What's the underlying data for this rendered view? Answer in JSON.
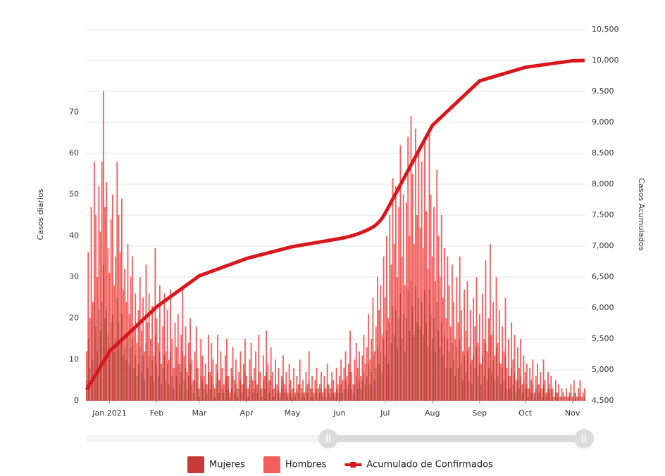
{
  "chart_data": {
    "type": "bar",
    "stacked": true,
    "ylabel": "Casos diarios",
    "y2label": "Casos Acumulados",
    "ylim": [
      0,
      90
    ],
    "yticks": [
      0,
      10,
      20,
      30,
      40,
      50,
      60,
      70
    ],
    "y2lim": [
      4500,
      10500
    ],
    "y2ticks": [
      {
        "value": 4500,
        "label": "4,500"
      },
      {
        "value": 5000,
        "label": "5,000"
      },
      {
        "value": 5500,
        "label": "5,500"
      },
      {
        "value": 6000,
        "label": "6,000"
      },
      {
        "value": 6500,
        "label": "6,500"
      },
      {
        "value": 7000,
        "label": "7,000"
      },
      {
        "value": 7500,
        "label": "7,500"
      },
      {
        "value": 8000,
        "label": "8,000"
      },
      {
        "value": 8500,
        "label": "8,500"
      },
      {
        "value": 9000,
        "label": "9,000"
      },
      {
        "value": 9500,
        "label": "9,500"
      },
      {
        "value": 10000,
        "label": "10,000"
      },
      {
        "value": 10500,
        "label": "10,500"
      }
    ],
    "grid": true,
    "legend": "bottom",
    "categories": [
      null,
      null,
      null,
      null,
      null,
      null,
      null,
      null,
      null,
      null,
      null,
      null,
      null,
      null,
      null,
      "Jan 2021",
      null,
      null,
      null,
      null,
      null,
      null,
      null,
      null,
      null,
      null,
      null,
      null,
      null,
      null,
      null,
      null,
      null,
      null,
      null,
      null,
      null,
      null,
      null,
      null,
      null,
      null,
      null,
      null,
      null,
      null,
      "Feb",
      null,
      null,
      null,
      null,
      null,
      null,
      null,
      null,
      null,
      null,
      null,
      null,
      null,
      null,
      null,
      null,
      null,
      null,
      null,
      null,
      null,
      null,
      null,
      null,
      null,
      null,
      null,
      "Mar",
      null,
      null,
      null,
      null,
      null,
      null,
      null,
      null,
      null,
      null,
      null,
      null,
      null,
      null,
      null,
      null,
      null,
      null,
      null,
      null,
      null,
      null,
      null,
      null,
      null,
      null,
      null,
      null,
      null,
      null,
      "Apr",
      null,
      null,
      null,
      null,
      null,
      null,
      null,
      null,
      null,
      null,
      null,
      null,
      null,
      null,
      null,
      null,
      null,
      null,
      null,
      null,
      null,
      null,
      null,
      null,
      null,
      null,
      null,
      null,
      null,
      "May",
      null,
      null,
      null,
      null,
      null,
      null,
      null,
      null,
      null,
      null,
      null,
      null,
      null,
      null,
      null,
      null,
      null,
      null,
      null,
      null,
      null,
      null,
      null,
      null,
      null,
      null,
      null,
      null,
      null,
      null,
      "Jun",
      null,
      null,
      null,
      null,
      null,
      null,
      null,
      null,
      null,
      null,
      null,
      null,
      null,
      null,
      null,
      null,
      null,
      null,
      null,
      null,
      null,
      null,
      null,
      null,
      null,
      null,
      null,
      null,
      null,
      "Jul",
      null,
      null,
      null,
      null,
      null,
      null,
      null,
      null,
      null,
      null,
      null,
      null,
      null,
      null,
      null,
      null,
      null,
      null,
      null,
      null,
      null,
      null,
      null,
      null,
      null,
      null,
      null,
      null,
      null,
      null,
      "Aug",
      null,
      null,
      null,
      null,
      null,
      null,
      null,
      null,
      null,
      null,
      null,
      null,
      null,
      null,
      null,
      null,
      null,
      null,
      null,
      null,
      null,
      null,
      null,
      null,
      null,
      null,
      null,
      null,
      null,
      null,
      "Sep",
      null,
      null,
      null,
      null,
      null,
      null,
      null,
      null,
      null,
      null,
      null,
      null,
      null,
      null,
      null,
      null,
      null,
      null,
      null,
      null,
      null,
      null,
      null,
      null,
      null,
      null,
      null,
      null,
      null,
      "Oct",
      null,
      null,
      null,
      null,
      null,
      null,
      null,
      null,
      null,
      null,
      null,
      null,
      null,
      null,
      null,
      null,
      null,
      null,
      null,
      null,
      null,
      null,
      null,
      null,
      null,
      null,
      null,
      null,
      null,
      null,
      "Nov",
      null,
      null,
      null,
      null,
      null,
      null,
      null,
      null
    ],
    "series": [
      {
        "name": "Mujeres",
        "color": "#c43c35",
        "values": [
          5,
          15,
          8,
          20,
          10,
          24,
          18,
          12,
          22,
          17,
          24,
          33,
          20,
          22,
          16,
          13,
          19,
          21,
          12,
          15,
          25,
          19,
          15,
          21,
          11,
          13,
          10,
          16,
          9,
          13,
          15,
          8,
          11,
          6,
          9,
          13,
          7,
          11,
          5,
          14,
          8,
          11,
          6,
          10,
          5,
          16,
          9,
          6,
          12,
          4,
          8,
          11,
          5,
          9,
          4,
          12,
          6,
          3,
          8,
          6,
          9,
          4,
          7,
          12,
          5,
          8,
          3,
          6,
          9,
          4,
          2,
          5,
          8,
          3,
          1,
          6,
          5,
          3,
          4,
          2,
          7,
          3,
          6,
          4,
          1,
          4,
          7,
          2,
          5,
          3,
          2,
          5,
          6,
          3,
          1,
          3,
          6,
          2,
          4,
          1,
          3,
          5,
          2,
          4,
          7,
          3,
          1,
          4,
          6,
          2,
          3,
          5,
          2,
          7,
          3,
          1,
          5,
          3,
          7,
          4,
          2,
          6,
          3,
          1,
          4,
          2,
          3,
          1,
          3,
          5,
          2,
          3,
          1,
          4,
          2,
          1,
          3,
          1,
          3,
          2,
          4,
          1,
          2,
          1,
          3,
          2,
          5,
          1,
          3,
          1,
          2,
          3,
          1,
          2,
          3,
          1,
          3,
          1,
          4,
          2,
          1,
          3,
          2,
          1,
          3,
          2,
          3,
          4,
          2,
          3,
          5,
          3,
          4,
          7,
          3,
          2,
          4,
          6,
          3,
          5,
          3,
          5,
          7,
          4,
          6,
          9,
          4,
          7,
          11,
          5,
          8,
          13,
          9,
          12,
          7,
          15,
          11,
          17,
          9,
          19,
          14,
          23,
          16,
          22,
          13,
          20,
          26,
          15,
          21,
          12,
          20,
          27,
          17,
          29,
          23,
          16,
          28,
          19,
          25,
          18,
          24,
          16,
          27,
          19,
          13,
          27,
          21,
          15,
          20,
          12,
          24,
          17,
          13,
          19,
          11,
          16,
          8,
          15,
          12,
          8,
          14,
          10,
          6,
          13,
          8,
          15,
          9,
          5,
          11,
          7,
          12,
          5,
          9,
          4,
          11,
          8,
          13,
          6,
          9,
          4,
          11,
          6,
          14,
          5,
          8,
          16,
          7,
          10,
          5,
          13,
          6,
          9,
          4,
          8,
          5,
          11,
          3,
          6,
          3,
          8,
          4,
          7,
          2,
          5,
          3,
          6,
          2,
          5,
          3,
          4,
          1,
          3,
          2,
          4,
          1,
          3,
          4,
          2,
          3,
          1,
          4,
          2,
          1,
          3,
          2,
          3,
          1,
          0,
          2,
          1,
          2,
          0,
          1,
          1,
          0,
          1,
          0,
          1,
          2,
          0,
          2,
          1,
          0,
          1,
          2,
          0,
          1,
          1
        ]
      },
      {
        "name": "Hombres",
        "color": "#f25d5a",
        "values": [
          7,
          21,
          12,
          27,
          14,
          34,
          27,
          18,
          30,
          24,
          34,
          42,
          27,
          31,
          21,
          18,
          25,
          29,
          16,
          20,
          33,
          26,
          21,
          28,
          16,
          19,
          14,
          22,
          12,
          17,
          20,
          10,
          15,
          8,
          13,
          17,
          10,
          14,
          7,
          19,
          11,
          15,
          9,
          13,
          6,
          21,
          11,
          8,
          16,
          5,
          10,
          15,
          7,
          13,
          6,
          15,
          9,
          5,
          11,
          7,
          12,
          5,
          9,
          16,
          6,
          10,
          4,
          8,
          11,
          6,
          3,
          7,
          10,
          5,
          2,
          9,
          6,
          3,
          5,
          2,
          9,
          4,
          8,
          6,
          2,
          5,
          9,
          3,
          7,
          5,
          2,
          6,
          9,
          3,
          1,
          5,
          7,
          3,
          6,
          2,
          4,
          7,
          2,
          5,
          8,
          3,
          2,
          6,
          8,
          3,
          5,
          7,
          2,
          9,
          4,
          2,
          6,
          3,
          10,
          5,
          3,
          7,
          4,
          2,
          6,
          2,
          5,
          1,
          3,
          6,
          2,
          4,
          1,
          5,
          3,
          2,
          5,
          1,
          3,
          2,
          6,
          2,
          3,
          1,
          4,
          2,
          7,
          2,
          3,
          1,
          3,
          5,
          2,
          2,
          4,
          1,
          3,
          2,
          5,
          2,
          2,
          4,
          3,
          1,
          5,
          2,
          3,
          6,
          3,
          5,
          7,
          3,
          5,
          10,
          4,
          2,
          6,
          8,
          5,
          7,
          3,
          6,
          9,
          5,
          7,
          12,
          6,
          8,
          14,
          7,
          10,
          17,
          13,
          16,
          9,
          20,
          14,
          23,
          11,
          26,
          19,
          31,
          22,
          30,
          17,
          27,
          36,
          20,
          29,
          16,
          28,
          37,
          23,
          40,
          32,
          22,
          38,
          26,
          35,
          24,
          34,
          21,
          36,
          27,
          19,
          38,
          29,
          20,
          27,
          17,
          32,
          23,
          17,
          26,
          14,
          21,
          12,
          20,
          16,
          10,
          19,
          14,
          9,
          17,
          11,
          20,
          13,
          7,
          16,
          10,
          17,
          8,
          13,
          6,
          14,
          10,
          17,
          8,
          12,
          5,
          15,
          9,
          20,
          7,
          12,
          22,
          9,
          14,
          6,
          17,
          8,
          13,
          5,
          10,
          7,
          14,
          5,
          9,
          3,
          11,
          6,
          9,
          3,
          8,
          5,
          9,
          2,
          6,
          4,
          5,
          2,
          5,
          3,
          6,
          1,
          3,
          5,
          2,
          4,
          2,
          6,
          3,
          1,
          4,
          2,
          3,
          2,
          1,
          3,
          1,
          2,
          1,
          2,
          1,
          1,
          2,
          1,
          1,
          2,
          1,
          3,
          1,
          1,
          2,
          3,
          1,
          1,
          2
        ]
      },
      {
        "name": "Acumulado de Confirmados",
        "color": "#d7191f",
        "type": "line",
        "axis": "y2",
        "values": [
          4680,
          4721,
          4762,
          4803,
          4844,
          4885,
          4926,
          4967,
          5008,
          5049,
          5090,
          5131,
          5172,
          5213,
          5254,
          5300,
          5323,
          5346,
          5370,
          5393,
          5416,
          5439,
          5462,
          5486,
          5509,
          5532,
          5555,
          5578,
          5602,
          5625,
          5648,
          5671,
          5694,
          5718,
          5741,
          5764,
          5787,
          5810,
          5834,
          5857,
          5880,
          5903,
          5926,
          5950,
          5973,
          5996,
          6020,
          6038,
          6056,
          6074,
          6092,
          6110,
          6127,
          6145,
          6163,
          6181,
          6199,
          6217,
          6235,
          6253,
          6270,
          6288,
          6306,
          6324,
          6342,
          6360,
          6378,
          6396,
          6413,
          6431,
          6449,
          6467,
          6485,
          6503,
          6520,
          6529,
          6538,
          6547,
          6556,
          6565,
          6574,
          6583,
          6592,
          6601,
          6610,
          6619,
          6628,
          6637,
          6646,
          6655,
          6664,
          6673,
          6682,
          6691,
          6700,
          6709,
          6718,
          6727,
          6736,
          6745,
          6754,
          6763,
          6772,
          6781,
          6790,
          6800,
          6806,
          6813,
          6819,
          6825,
          6832,
          6838,
          6844,
          6851,
          6857,
          6863,
          6870,
          6876,
          6882,
          6889,
          6895,
          6901,
          6908,
          6914,
          6920,
          6927,
          6933,
          6939,
          6946,
          6952,
          6958,
          6965,
          6971,
          6977,
          6984,
          6990,
          6994,
          6998,
          7003,
          7007,
          7011,
          7015,
          7019,
          7024,
          7028,
          7032,
          7036,
          7040,
          7045,
          7049,
          7053,
          7057,
          7061,
          7066,
          7070,
          7074,
          7078,
          7082,
          7087,
          7091,
          7095,
          7099,
          7103,
          7108,
          7112,
          7116,
          7120,
          7125,
          7130,
          7135,
          7141,
          7147,
          7153,
          7159,
          7166,
          7173,
          7181,
          7189,
          7197,
          7206,
          7215,
          7225,
          7235,
          7246,
          7257,
          7269,
          7282,
          7295,
          7309,
          7324,
          7345,
          7368,
          7392,
          7418,
          7450,
          7490,
          7530,
          7576,
          7622,
          7668,
          7714,
          7760,
          7805,
          7851,
          7897,
          7943,
          7989,
          8035,
          8080,
          8126,
          8172,
          8218,
          8264,
          8310,
          8355,
          8401,
          8447,
          8493,
          8539,
          8585,
          8630,
          8676,
          8722,
          8768,
          8814,
          8860,
          8905,
          8950,
          8973,
          8996,
          9020,
          9043,
          9066,
          9089,
          9112,
          9136,
          9159,
          9182,
          9205,
          9228,
          9252,
          9275,
          9298,
          9321,
          9344,
          9368,
          9391,
          9414,
          9437,
          9460,
          9484,
          9507,
          9530,
          9553,
          9576,
          9600,
          9623,
          9646,
          9670,
          9677,
          9685,
          9692,
          9699,
          9706,
          9714,
          9721,
          9728,
          9736,
          9743,
          9750,
          9758,
          9765,
          9772,
          9779,
          9787,
          9794,
          9801,
          9809,
          9816,
          9823,
          9831,
          9838,
          9845,
          9852,
          9860,
          9867,
          9874,
          9882,
          9890,
          9893,
          9897,
          9900,
          9903,
          9907,
          9910,
          9914,
          9917,
          9920,
          9924,
          9927,
          9931,
          9934,
          9937,
          9941,
          9944,
          9948,
          9951,
          9954,
          9958,
          9961,
          9965,
          9968,
          9971,
          9975,
          9978,
          9982,
          9985,
          9988,
          9992,
          9995,
          9996,
          9996,
          9997,
          9998,
          9998,
          9999,
          9999,
          10000
        ]
      }
    ]
  }
}
